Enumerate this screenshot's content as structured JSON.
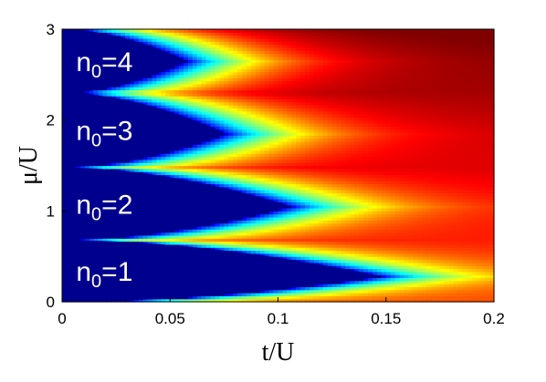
{
  "chart_data": {
    "type": "heatmap",
    "title": "",
    "xlabel": "t/U",
    "ylabel": "μ/U",
    "xlim": [
      0,
      0.2
    ],
    "ylim": [
      0,
      3
    ],
    "x_ticks": [
      "0",
      "0.05",
      "0.1",
      "0.15",
      "0.2"
    ],
    "x_tick_values": [
      0,
      0.05,
      0.1,
      0.15,
      0.2
    ],
    "y_ticks": [
      "0",
      "1",
      "2",
      "3"
    ],
    "y_tick_values": [
      0,
      1,
      2,
      3
    ],
    "colormap": "jet",
    "mott_lobes": [
      {
        "label_base": "n",
        "label_sub": "0",
        "label_rest": "=1",
        "n": 1,
        "mu_low": 0.0,
        "mu_high": 0.68,
        "tip_t": 0.148,
        "tip_mu": 0.28
      },
      {
        "label_base": "n",
        "label_sub": "0",
        "label_rest": "=2",
        "n": 2,
        "mu_low": 0.68,
        "mu_high": 1.48,
        "tip_t": 0.106,
        "tip_mu": 1.05
      },
      {
        "label_base": "n",
        "label_sub": "0",
        "label_rest": "=3",
        "n": 3,
        "mu_low": 1.48,
        "mu_high": 2.3,
        "tip_t": 0.076,
        "tip_mu": 1.85
      },
      {
        "label_base": "n",
        "label_sub": "0",
        "label_rest": "=4",
        "n": 4,
        "mu_low": 2.3,
        "mu_high": 3.0,
        "tip_t": 0.058,
        "tip_mu": 2.65
      }
    ],
    "colors": {
      "inside_lobe": "#00008f",
      "max": "#7f0000"
    }
  }
}
